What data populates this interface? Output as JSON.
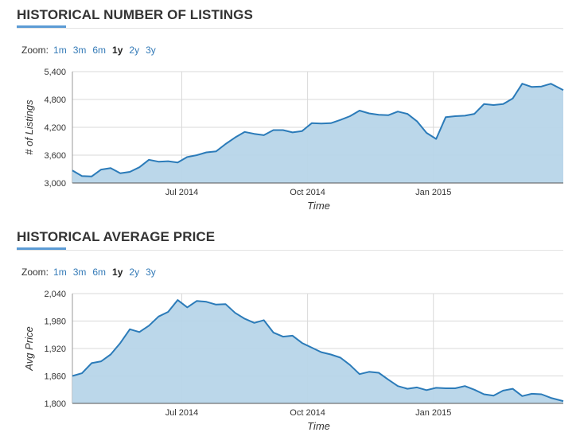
{
  "zoom": {
    "label": "Zoom:",
    "options": [
      "1m",
      "3m",
      "6m",
      "1y",
      "2y",
      "3y"
    ],
    "active": "1y"
  },
  "colors": {
    "line": "#2b7bb9",
    "fill": "#b7d5e9",
    "grid": "#d9d9d9",
    "accent": "#5b9bd5"
  },
  "chart_data": [
    {
      "type": "area",
      "title": "HISTORICAL NUMBER OF LISTINGS",
      "xlabel": "Time",
      "ylabel": "# of Listings",
      "ylim": [
        3000,
        5400
      ],
      "yticks": [
        3000,
        3600,
        4200,
        4800,
        5400
      ],
      "ytick_labels": [
        "3,000",
        "3,600",
        "4,200",
        "4,800",
        "5,400"
      ],
      "x_range": [
        "2014-04-12",
        "2015-04-06"
      ],
      "xticks": [
        {
          "date": "2014-07-01",
          "label": "Jul 2014"
        },
        {
          "date": "2014-10-01",
          "label": "Oct 2014"
        },
        {
          "date": "2015-01-01",
          "label": "Jan 2015"
        }
      ],
      "grid": true,
      "series": [
        {
          "x": [
            "2014-04-12",
            "2014-04-19",
            "2014-04-26",
            "2014-05-03",
            "2014-05-10",
            "2014-05-17",
            "2014-05-24",
            "2014-05-31",
            "2014-06-07",
            "2014-06-14",
            "2014-06-21",
            "2014-06-28",
            "2014-07-05",
            "2014-07-12",
            "2014-07-19",
            "2014-07-26",
            "2014-08-02",
            "2014-08-09",
            "2014-08-16",
            "2014-08-23",
            "2014-08-30",
            "2014-09-06",
            "2014-09-13",
            "2014-09-20",
            "2014-09-27",
            "2014-10-04",
            "2014-10-11",
            "2014-10-18",
            "2014-10-25",
            "2014-11-01",
            "2014-11-08",
            "2014-11-15",
            "2014-11-22",
            "2014-11-29",
            "2014-12-06",
            "2014-12-13",
            "2014-12-20",
            "2014-12-27",
            "2015-01-03",
            "2015-01-10",
            "2015-01-17",
            "2015-01-24",
            "2015-01-31",
            "2015-02-07",
            "2015-02-14",
            "2015-02-21",
            "2015-02-28",
            "2015-03-07",
            "2015-03-14",
            "2015-03-21",
            "2015-03-28",
            "2015-04-06"
          ],
          "values": [
            3270,
            3150,
            3140,
            3290,
            3320,
            3210,
            3240,
            3340,
            3500,
            3460,
            3470,
            3440,
            3560,
            3600,
            3660,
            3680,
            3840,
            3980,
            4100,
            4060,
            4030,
            4140,
            4140,
            4090,
            4120,
            4290,
            4280,
            4290,
            4360,
            4440,
            4560,
            4500,
            4470,
            4460,
            4540,
            4490,
            4330,
            4080,
            3950,
            4420,
            4440,
            4450,
            4490,
            4700,
            4680,
            4700,
            4820,
            5140,
            5070,
            5080,
            5140,
            5000
          ]
        }
      ]
    },
    {
      "type": "area",
      "title": "HISTORICAL AVERAGE PRICE",
      "xlabel": "Time",
      "ylabel": "Avg Price",
      "ylim": [
        1800,
        2040
      ],
      "yticks": [
        1800,
        1860,
        1920,
        1980,
        2040
      ],
      "ytick_labels": [
        "1,800",
        "1,860",
        "1,920",
        "1,980",
        "2,040"
      ],
      "x_range": [
        "2014-04-12",
        "2015-04-06"
      ],
      "xticks": [
        {
          "date": "2014-07-01",
          "label": "Jul 2014"
        },
        {
          "date": "2014-10-01",
          "label": "Oct 2014"
        },
        {
          "date": "2015-01-01",
          "label": "Jan 2015"
        }
      ],
      "grid": true,
      "series": [
        {
          "x": [
            "2014-04-12",
            "2014-04-19",
            "2014-04-26",
            "2014-05-03",
            "2014-05-10",
            "2014-05-17",
            "2014-05-24",
            "2014-05-31",
            "2014-06-07",
            "2014-06-14",
            "2014-06-21",
            "2014-06-28",
            "2014-07-05",
            "2014-07-12",
            "2014-07-19",
            "2014-07-26",
            "2014-08-02",
            "2014-08-09",
            "2014-08-16",
            "2014-08-23",
            "2014-08-30",
            "2014-09-06",
            "2014-09-13",
            "2014-09-20",
            "2014-09-27",
            "2014-10-04",
            "2014-10-11",
            "2014-10-18",
            "2014-10-25",
            "2014-11-01",
            "2014-11-08",
            "2014-11-15",
            "2014-11-22",
            "2014-11-29",
            "2014-12-06",
            "2014-12-13",
            "2014-12-20",
            "2014-12-27",
            "2015-01-03",
            "2015-01-10",
            "2015-01-17",
            "2015-01-24",
            "2015-01-31",
            "2015-02-07",
            "2015-02-14",
            "2015-02-21",
            "2015-02-28",
            "2015-03-07",
            "2015-03-14",
            "2015-03-21",
            "2015-03-28",
            "2015-04-06"
          ],
          "values": [
            1860,
            1866,
            1888,
            1892,
            1907,
            1932,
            1962,
            1956,
            1970,
            1990,
            2000,
            2026,
            2010,
            2024,
            2022,
            2016,
            2017,
            1998,
            1985,
            1976,
            1982,
            1955,
            1946,
            1948,
            1932,
            1922,
            1912,
            1907,
            1900,
            1884,
            1864,
            1869,
            1867,
            1852,
            1838,
            1832,
            1835,
            1829,
            1834,
            1833,
            1833,
            1838,
            1830,
            1820,
            1817,
            1828,
            1832,
            1816,
            1821,
            1820,
            1812,
            1805
          ]
        }
      ]
    }
  ]
}
